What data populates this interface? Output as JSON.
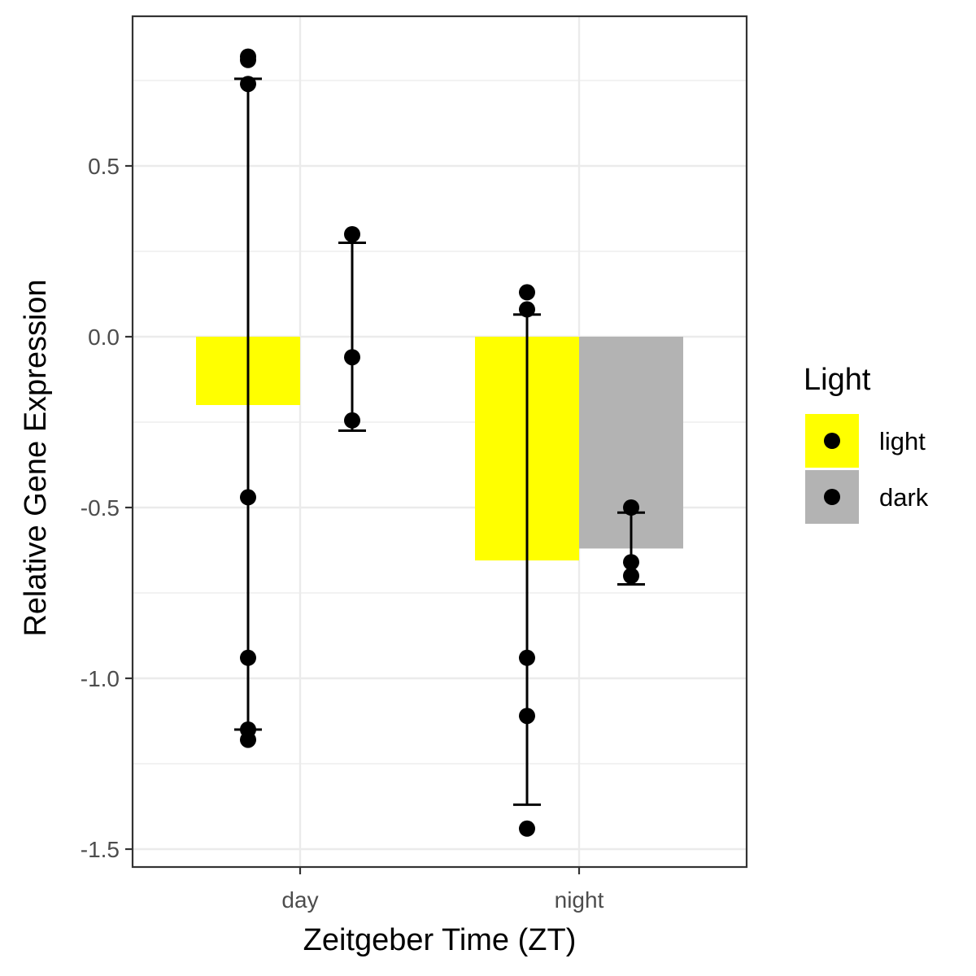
{
  "chart_data": {
    "type": "bar",
    "xlabel": "Zeitgeber Time (ZT)",
    "ylabel": "Relative Gene Expression",
    "categories": [
      "day",
      "night"
    ],
    "ylim": [
      -1.55,
      0.92
    ],
    "yticks": [
      0.5,
      0.0,
      -0.5,
      -1.0,
      -1.5
    ],
    "ytick_labels": [
      "0.5",
      "0.0",
      "-0.5",
      "-1.0",
      "-1.5"
    ],
    "grid": true,
    "legend": {
      "title": "Light",
      "position": "right",
      "entries": [
        {
          "label": "light",
          "color": "#FFFF00"
        },
        {
          "label": "dark",
          "color": "#B3B3B3"
        }
      ]
    },
    "series": [
      {
        "name": "light",
        "color": "#FFFF00",
        "values": [
          -0.2,
          -0.655
        ],
        "error_low": [
          -1.15,
          -1.37
        ],
        "error_high": [
          0.755,
          0.065
        ],
        "points": [
          [
            0.82,
            0.81,
            0.74,
            -0.47,
            -0.94,
            -1.15,
            -1.18
          ],
          [
            0.13,
            0.08,
            -0.94,
            -1.11,
            -1.44
          ]
        ]
      },
      {
        "name": "dark",
        "color": "#B3B3B3",
        "values": [
          null,
          -0.62
        ],
        "error_low": [
          -0.275,
          -0.725
        ],
        "error_high": [
          0.275,
          -0.515
        ],
        "points": [
          [
            0.3,
            -0.06,
            -0.245
          ],
          [
            -0.5,
            -0.66,
            -0.7
          ]
        ]
      }
    ]
  }
}
